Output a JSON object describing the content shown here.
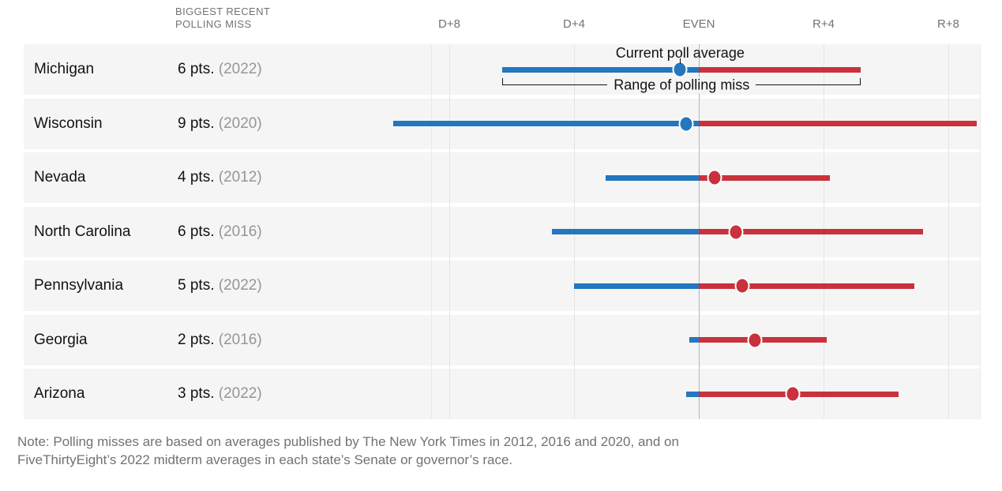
{
  "colors": {
    "dem_blue": "#2476be",
    "rep_red": "#c9313c",
    "row_band": "#f5f5f5",
    "gridline": "#e4e4e4",
    "gridline_even": "#b4b4b4",
    "gridline_edge": "#ebebeb",
    "text_dark": "#121212",
    "text_gray": "#737373",
    "year_gray": "#969696"
  },
  "column_header": {
    "line1": "BIGGEST RECENT",
    "line2": "POLLING MISS"
  },
  "chart_data": {
    "type": "dot-range",
    "description": "Current poll average (dot) with range of past polling miss (bar) per state; scale in percentage points, D = Democratic margin, R = Republican margin",
    "x_ticks": [
      {
        "label": "D+8",
        "pts": -8
      },
      {
        "label": "D+4",
        "pts": -4
      },
      {
        "label": "EVEN",
        "pts": 0
      },
      {
        "label": "R+4",
        "pts": 4
      },
      {
        "label": "R+8",
        "pts": 8
      }
    ],
    "xlim": [
      -8.6,
      9.0
    ],
    "rows": [
      {
        "state": "Michigan",
        "miss_label": "6 pts.",
        "year_label": "(2022)",
        "miss_pts": 6,
        "miss_year": 2022,
        "poll_avg": -0.6,
        "range": [
          -6.3,
          5.2
        ],
        "lead": "D",
        "annotated": true
      },
      {
        "state": "Wisconsin",
        "miss_label": "9 pts.",
        "year_label": "(2020)",
        "miss_pts": 9,
        "miss_year": 2020,
        "poll_avg": -0.4,
        "range": [
          -9.8,
          8.9
        ],
        "lead": "D",
        "annotated": false
      },
      {
        "state": "Nevada",
        "miss_label": "4 pts.",
        "year_label": "(2012)",
        "miss_pts": 4,
        "miss_year": 2012,
        "poll_avg": 0.5,
        "range": [
          -3.0,
          4.2
        ],
        "lead": "R",
        "annotated": false
      },
      {
        "state": "North Carolina",
        "miss_label": "6 pts.",
        "year_label": "(2016)",
        "miss_pts": 6,
        "miss_year": 2016,
        "poll_avg": 1.2,
        "range": [
          -4.7,
          7.2
        ],
        "lead": "R",
        "annotated": false
      },
      {
        "state": "Pennsylvania",
        "miss_label": "5 pts.",
        "year_label": "(2022)",
        "miss_pts": 5,
        "miss_year": 2022,
        "poll_avg": 1.4,
        "range": [
          -4.0,
          6.9
        ],
        "lead": "R",
        "annotated": false
      },
      {
        "state": "Georgia",
        "miss_label": "2 pts.",
        "year_label": "(2016)",
        "miss_pts": 2,
        "miss_year": 2016,
        "poll_avg": 1.8,
        "range": [
          -0.3,
          4.1
        ],
        "lead": "R",
        "annotated": false
      },
      {
        "state": "Arizona",
        "miss_label": "3 pts.",
        "year_label": "(2022)",
        "miss_pts": 3,
        "miss_year": 2022,
        "poll_avg": 3.0,
        "range": [
          -0.4,
          6.4
        ],
        "lead": "R",
        "annotated": false
      }
    ],
    "annotations": {
      "poll_average": "Current poll average",
      "range": "Range of polling miss"
    },
    "legend_position": "inline-first-row",
    "grid": true
  },
  "note": {
    "line1": "Note: Polling misses are based on averages published by The New York Times in 2012, 2016 and 2020, and on",
    "line2": "FiveThirtyEight’s 2022 midterm averages in each state’s Senate or governor’s race."
  }
}
